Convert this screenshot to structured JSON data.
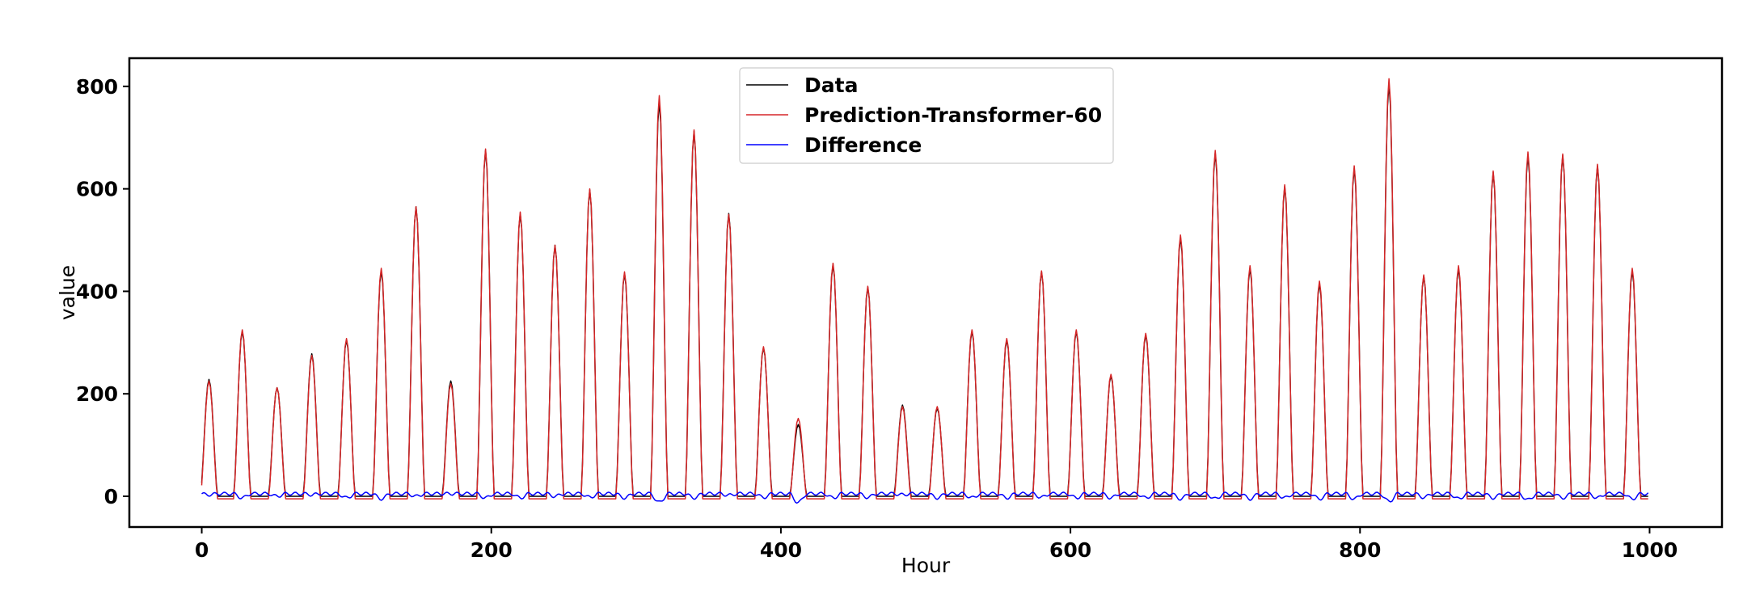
{
  "chart_data": {
    "type": "line",
    "title": "",
    "xlabel": "Hour",
    "ylabel": "value",
    "xlim": [
      -50,
      1050
    ],
    "ylim": [
      -60,
      855
    ],
    "xticks": [
      0,
      200,
      400,
      600,
      800,
      1000
    ],
    "yticks": [
      0,
      200,
      400,
      600,
      800
    ],
    "grid": false,
    "legend_position": "top-center",
    "series": [
      {
        "name": "Data",
        "color": "#000000",
        "baseline": 0,
        "peaks": [
          [
            5,
            228
          ],
          [
            28,
            322
          ],
          [
            52,
            212
          ],
          [
            76,
            278
          ],
          [
            100,
            305
          ],
          [
            124,
            440
          ],
          [
            148,
            565
          ],
          [
            172,
            225
          ],
          [
            196,
            675
          ],
          [
            220,
            552
          ],
          [
            244,
            490
          ],
          [
            268,
            598
          ],
          [
            292,
            435
          ],
          [
            316,
            770
          ],
          [
            340,
            712
          ],
          [
            364,
            552
          ],
          [
            388,
            290
          ],
          [
            412,
            140
          ],
          [
            436,
            452
          ],
          [
            460,
            408
          ],
          [
            484,
            178
          ],
          [
            508,
            172
          ],
          [
            532,
            322
          ],
          [
            556,
            305
          ],
          [
            580,
            438
          ],
          [
            604,
            322
          ],
          [
            628,
            235
          ],
          [
            652,
            315
          ],
          [
            676,
            505
          ],
          [
            700,
            670
          ],
          [
            724,
            445
          ],
          [
            748,
            605
          ],
          [
            772,
            415
          ],
          [
            796,
            640
          ],
          [
            820,
            805
          ],
          [
            844,
            430
          ],
          [
            868,
            445
          ],
          [
            892,
            632
          ],
          [
            916,
            665
          ],
          [
            940,
            665
          ],
          [
            964,
            645
          ],
          [
            988,
            440
          ]
        ]
      },
      {
        "name": "Prediction-Transformer-60",
        "color": "#d62728",
        "baseline": -5,
        "peaks": [
          [
            5,
            225
          ],
          [
            28,
            325
          ],
          [
            52,
            212
          ],
          [
            76,
            275
          ],
          [
            100,
            308
          ],
          [
            124,
            445
          ],
          [
            148,
            565
          ],
          [
            172,
            220
          ],
          [
            196,
            678
          ],
          [
            220,
            555
          ],
          [
            244,
            490
          ],
          [
            268,
            600
          ],
          [
            292,
            438
          ],
          [
            316,
            782
          ],
          [
            340,
            715
          ],
          [
            364,
            550
          ],
          [
            388,
            292
          ],
          [
            412,
            152
          ],
          [
            436,
            455
          ],
          [
            460,
            410
          ],
          [
            484,
            175
          ],
          [
            508,
            175
          ],
          [
            532,
            325
          ],
          [
            556,
            308
          ],
          [
            580,
            440
          ],
          [
            604,
            325
          ],
          [
            628,
            238
          ],
          [
            652,
            318
          ],
          [
            676,
            510
          ],
          [
            700,
            675
          ],
          [
            724,
            450
          ],
          [
            748,
            608
          ],
          [
            772,
            420
          ],
          [
            796,
            645
          ],
          [
            820,
            815
          ],
          [
            844,
            432
          ],
          [
            868,
            450
          ],
          [
            892,
            635
          ],
          [
            916,
            672
          ],
          [
            940,
            668
          ],
          [
            964,
            648
          ],
          [
            988,
            445
          ]
        ]
      },
      {
        "name": "Difference",
        "color": "#0000ff"
      }
    ]
  }
}
